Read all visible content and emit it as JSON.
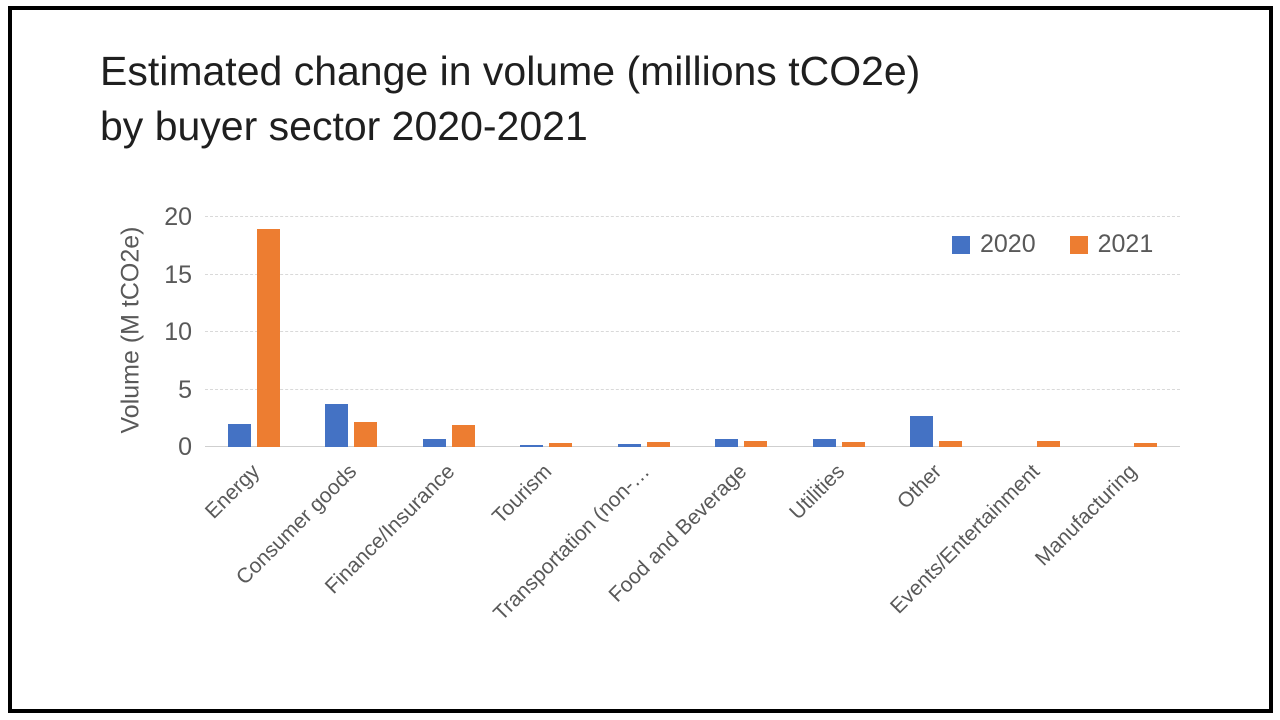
{
  "slide": {
    "title_lines": [
      "Estimated change in volume (millions tCO2e)",
      "by buyer sector 2020-2021"
    ]
  },
  "chart_data": {
    "type": "bar",
    "title": "Estimated change in volume (millions tCO2e) by buyer sector 2020-2021",
    "categories": [
      "Energy",
      "Consumer goods",
      "Finance/Insurance",
      "Tourism",
      "Transportation (non-…",
      "Food and Beverage",
      "Utilities",
      "Other",
      "Events/Entertainment",
      "Manufacturing"
    ],
    "series": [
      {
        "name": "2020",
        "color": "#4472C4",
        "values": [
          2.0,
          3.7,
          0.7,
          0.2,
          0.25,
          0.7,
          0.7,
          2.7,
          0,
          0
        ]
      },
      {
        "name": "2021",
        "color": "#ED7D31",
        "values": [
          19.0,
          2.2,
          1.9,
          0.35,
          0.45,
          0.55,
          0.4,
          0.55,
          0.55,
          0.35
        ]
      }
    ],
    "ylabel": "Volume (M tCO2e)",
    "xlabel": "",
    "ylim": [
      0,
      20
    ],
    "yticks": [
      0,
      5,
      10,
      15,
      20
    ],
    "grid": true,
    "legend_position": "top-right",
    "colors": {
      "gridline": "#D9D9D9",
      "axis_text": "#595959",
      "title_text": "#1F1F1F",
      "frame_border": "#000000",
      "background": "#FFFFFF"
    }
  }
}
